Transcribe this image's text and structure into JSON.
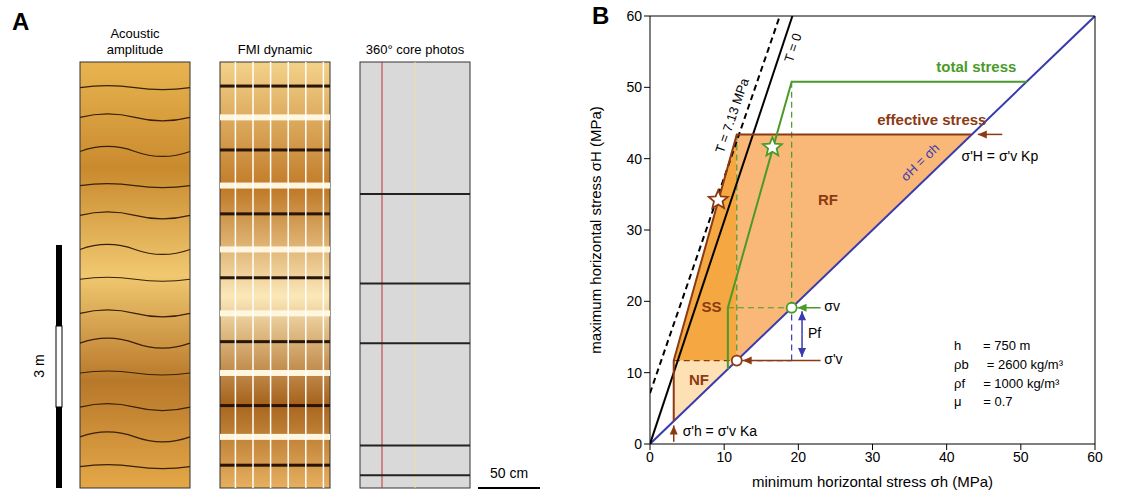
{
  "panel_a": {
    "letter": "A",
    "columns": [
      "Acoustic amplitude",
      "FMI dynamic",
      "360° core photos"
    ],
    "vertical_scale_bar": "3 m",
    "horizontal_scale_bar": "50 cm"
  },
  "chart_data": {
    "type": "line",
    "letter": "B",
    "xlabel": "minimum horizontal stress σh (MPa)",
    "ylabel": "maximum horizontal stress σH (MPa)",
    "xlim": [
      0,
      60
    ],
    "ylim": [
      0,
      60
    ],
    "xticks": [
      0,
      10,
      20,
      30,
      40,
      50,
      60
    ],
    "yticks": [
      0,
      10,
      20,
      30,
      40,
      50,
      60
    ],
    "grid": false,
    "series": [
      {
        "name": "σH = σh",
        "color": "#3a3ab0",
        "line_style": "solid",
        "x": [
          0,
          60
        ],
        "y": [
          0,
          60
        ]
      },
      {
        "name": "T = 0",
        "color": "#000000",
        "line_style": "solid",
        "x": [
          0,
          19.2
        ],
        "y": [
          0,
          60
        ]
      },
      {
        "name": "T = 7.13 MPa",
        "color": "#000000",
        "line_style": "dashed",
        "x": [
          0,
          17.5
        ],
        "y": [
          7.13,
          60
        ]
      },
      {
        "name": "effective stress",
        "color": "#8b3a12",
        "line_style": "solid",
        "x": [
          3.2,
          3.2,
          11.7,
          43.4
        ],
        "y": [
          3.2,
          11.7,
          43.4,
          43.4
        ]
      },
      {
        "name": "total stress",
        "color": "#4a9a2a",
        "line_style": "solid",
        "x": [
          10.5,
          10.5,
          19.1,
          50.8
        ],
        "y": [
          10.5,
          19.1,
          50.8,
          50.8
        ]
      }
    ],
    "guides": [
      {
        "color": "#4a9a2a",
        "line_style": "dashed",
        "x": [
          19.1,
          19.1
        ],
        "y": [
          19.1,
          50.8
        ]
      },
      {
        "color": "#4a9a2a",
        "line_style": "dashed",
        "x": [
          10.5,
          19.1
        ],
        "y": [
          19.1,
          19.1
        ]
      },
      {
        "color": "#4a9a2a",
        "line_style": "dashed",
        "x": [
          11.7,
          11.7
        ],
        "y": [
          11.7,
          43.4
        ]
      },
      {
        "color": "#8b3a12",
        "line_style": "dashed",
        "x": [
          3.2,
          11.7
        ],
        "y": [
          11.7,
          11.7
        ]
      },
      {
        "color": "#3a3ab0",
        "line_style": "dashed",
        "x": [
          11.7,
          19.1
        ],
        "y": [
          11.7,
          11.7
        ]
      },
      {
        "color": "#3a3ab0",
        "line_style": "dashed",
        "x": [
          19.1,
          19.1
        ],
        "y": [
          11.7,
          19.1
        ]
      }
    ],
    "regions": [
      {
        "label": "NF",
        "color": "#fde0b4",
        "x": [
          3.2,
          11.7
        ],
        "low": [
          3.2,
          11.7
        ],
        "high": [
          11.7,
          11.7
        ],
        "label_x": 6.6,
        "label_y": 8.8
      },
      {
        "label": "SS",
        "color": "#f5a742",
        "x": [
          3.2,
          11.7
        ],
        "low": [
          11.7,
          11.7
        ],
        "high": [
          11.7,
          43.4
        ],
        "label_x": 8.3,
        "label_y": 19
      },
      {
        "label": "RF",
        "color": "#f9b877",
        "x": [
          11.7,
          43.4
        ],
        "low": [
          11.7,
          43.4
        ],
        "high": [
          43.4,
          43.4
        ],
        "label_x": 24,
        "label_y": 34
      }
    ],
    "points": [
      {
        "x": 9.2,
        "y": 34.2,
        "color": "#8b3a12",
        "marker": "star"
      },
      {
        "x": 16.5,
        "y": 41.6,
        "color": "#4a9a2a",
        "marker": "star"
      },
      {
        "x": 11.7,
        "y": 11.7,
        "color": "#8b3a12",
        "marker": "circle"
      },
      {
        "x": 19.1,
        "y": 19.1,
        "color": "#4a9a2a",
        "marker": "circle"
      }
    ],
    "arrows": [
      {
        "color": "#4a9a2a",
        "x": [
          23,
          19.9
        ],
        "y": [
          19.1,
          19.1
        ]
      },
      {
        "color": "#8b3a12",
        "x": [
          23,
          12.5
        ],
        "y": [
          11.7,
          11.7
        ]
      },
      {
        "color": "#3a3ab0",
        "x": [
          20.5,
          20.5
        ],
        "y": [
          15.4,
          18.6
        ]
      },
      {
        "color": "#3a3ab0",
        "x": [
          20.5,
          20.5
        ],
        "y": [
          15.4,
          12.2
        ]
      },
      {
        "color": "#8b3a12",
        "x": [
          47.5,
          44.2
        ],
        "y": [
          43.4,
          43.4
        ]
      },
      {
        "color": "#8b3a12",
        "x": [
          3.2,
          3.2
        ],
        "y": [
          0.3,
          2.6
        ]
      }
    ],
    "series_labels": [
      {
        "series": "σH = σh",
        "x": 36.5,
        "y": 39.4
      },
      {
        "series": "T = 0",
        "x": 19.4,
        "y": 55.5
      },
      {
        "series": "T = 7.13 MPa",
        "x": 11.2,
        "y": 46
      },
      {
        "series": "effective stress",
        "x": 38,
        "y": 45.3
      },
      {
        "series": "total stress",
        "x": 44,
        "y": 52.7
      }
    ],
    "annotations": [
      {
        "text": "σv",
        "x": 23.5,
        "y": 19.1,
        "color": "#000000"
      },
      {
        "text": "σ'v",
        "x": 23.5,
        "y": 11.7,
        "color": "#000000"
      },
      {
        "text": "Pf",
        "x": 21.3,
        "y": 15.4,
        "color": "#000000"
      },
      {
        "text": "σ'H = σ'v Kp",
        "x": 42,
        "y": 40.2,
        "color": "#000000"
      },
      {
        "text": "σ'h = σ'v Ka",
        "x": 4.4,
        "y": 1.6,
        "color": "#000000"
      }
    ],
    "parameters": {
      "x": 41,
      "y": [
        13.6,
        11,
        8.4,
        5.8
      ],
      "lines": [
        "h      = 750 m",
        "ρb     = 2600 kg/m³",
        "ρf     = 1000 kg/m³",
        "μ      = 0.7"
      ]
    }
  }
}
